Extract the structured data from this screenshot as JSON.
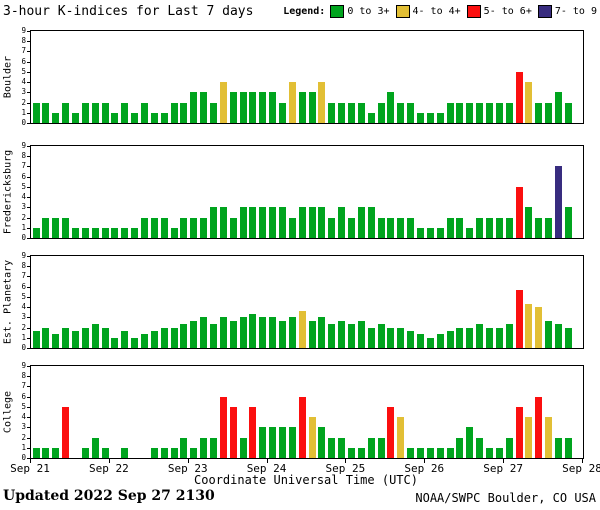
{
  "header": {
    "title": "3-hour K-indices for Last 7 days"
  },
  "legend": {
    "label": "Legend:",
    "items": [
      {
        "label": "0 to 3+",
        "color": "#00a41e",
        "min": 0,
        "max": 3.49
      },
      {
        "label": "4- to 4+",
        "color": "#e2bf35",
        "min": 3.5,
        "max": 4.49
      },
      {
        "label": "5- to 6+",
        "color": "#fb0f0f",
        "min": 4.5,
        "max": 6.49
      },
      {
        "label": "7- to 9",
        "color": "#382c7f",
        "min": 6.5,
        "max": 9
      }
    ]
  },
  "footer": {
    "updated_label": "Updated",
    "updated_value": "2022 Sep 27 2130",
    "credit": "NOAA/SWPC Boulder, CO USA"
  },
  "chart_data": {
    "type": "bar",
    "title": "3-hour K-indices for Last 7 days",
    "xlabel": "Coordinate Universal Time (UTC)",
    "ylim": [
      0,
      9
    ],
    "yticks": [
      0,
      1,
      2,
      3,
      4,
      5,
      6,
      7,
      8,
      9
    ],
    "x_tick_labels": [
      "Sep 21",
      "Sep 22",
      "Sep 23",
      "Sep 24",
      "Sep 25",
      "Sep 26",
      "Sep 27",
      "Sep 28"
    ],
    "bars_per_day": 8,
    "interval_hours": 3,
    "grid": false,
    "legend_position": "top-right",
    "panels": [
      {
        "station": "Boulder",
        "values": [
          2,
          2,
          1,
          2,
          1,
          2,
          2,
          2,
          1,
          2,
          1,
          2,
          1,
          1,
          2,
          2,
          3,
          3,
          2,
          4,
          3,
          3,
          3,
          3,
          3,
          2,
          4,
          3,
          3,
          4,
          2,
          2,
          2,
          2,
          1,
          2,
          3,
          2,
          2,
          1,
          1,
          1,
          2,
          2,
          2,
          2,
          2,
          2,
          2,
          5,
          4,
          2,
          2,
          3,
          2
        ]
      },
      {
        "station": "Fredericksburg",
        "values": [
          1,
          2,
          2,
          2,
          1,
          1,
          1,
          1,
          1,
          1,
          1,
          2,
          2,
          2,
          1,
          2,
          2,
          2,
          3,
          3,
          2,
          3,
          3,
          3,
          3,
          3,
          2,
          3,
          3,
          3,
          2,
          3,
          2,
          3,
          3,
          2,
          2,
          2,
          2,
          1,
          1,
          1,
          2,
          2,
          1,
          2,
          2,
          2,
          2,
          5,
          3,
          2,
          2,
          7,
          3
        ]
      },
      {
        "station": "Est. Planetary",
        "values": [
          1.67,
          2,
          1.33,
          2,
          1.67,
          2,
          2.33,
          2,
          1,
          1.67,
          1,
          1.33,
          1.67,
          2,
          2,
          2.33,
          2.67,
          3,
          2.33,
          3,
          2.67,
          3,
          3.33,
          3,
          3,
          2.67,
          3,
          3.67,
          2.67,
          3,
          2.33,
          2.67,
          2.33,
          2.67,
          2,
          2.33,
          2,
          2,
          1.67,
          1.33,
          1,
          1.33,
          1.67,
          2,
          2,
          2.33,
          2,
          2,
          2.33,
          5.67,
          4.33,
          4,
          2.67,
          2.33,
          2
        ]
      },
      {
        "station": "College",
        "values": [
          1,
          1,
          1,
          5,
          0,
          1,
          2,
          1,
          0,
          1,
          0,
          0,
          1,
          1,
          1,
          2,
          1,
          2,
          2,
          6,
          5,
          2,
          5,
          3,
          3,
          3,
          3,
          6,
          4,
          3,
          2,
          2,
          1,
          1,
          2,
          2,
          5,
          4,
          1,
          1,
          1,
          1,
          1,
          2,
          3,
          2,
          1,
          1,
          2,
          5,
          4,
          6,
          4,
          2,
          2
        ]
      }
    ]
  }
}
